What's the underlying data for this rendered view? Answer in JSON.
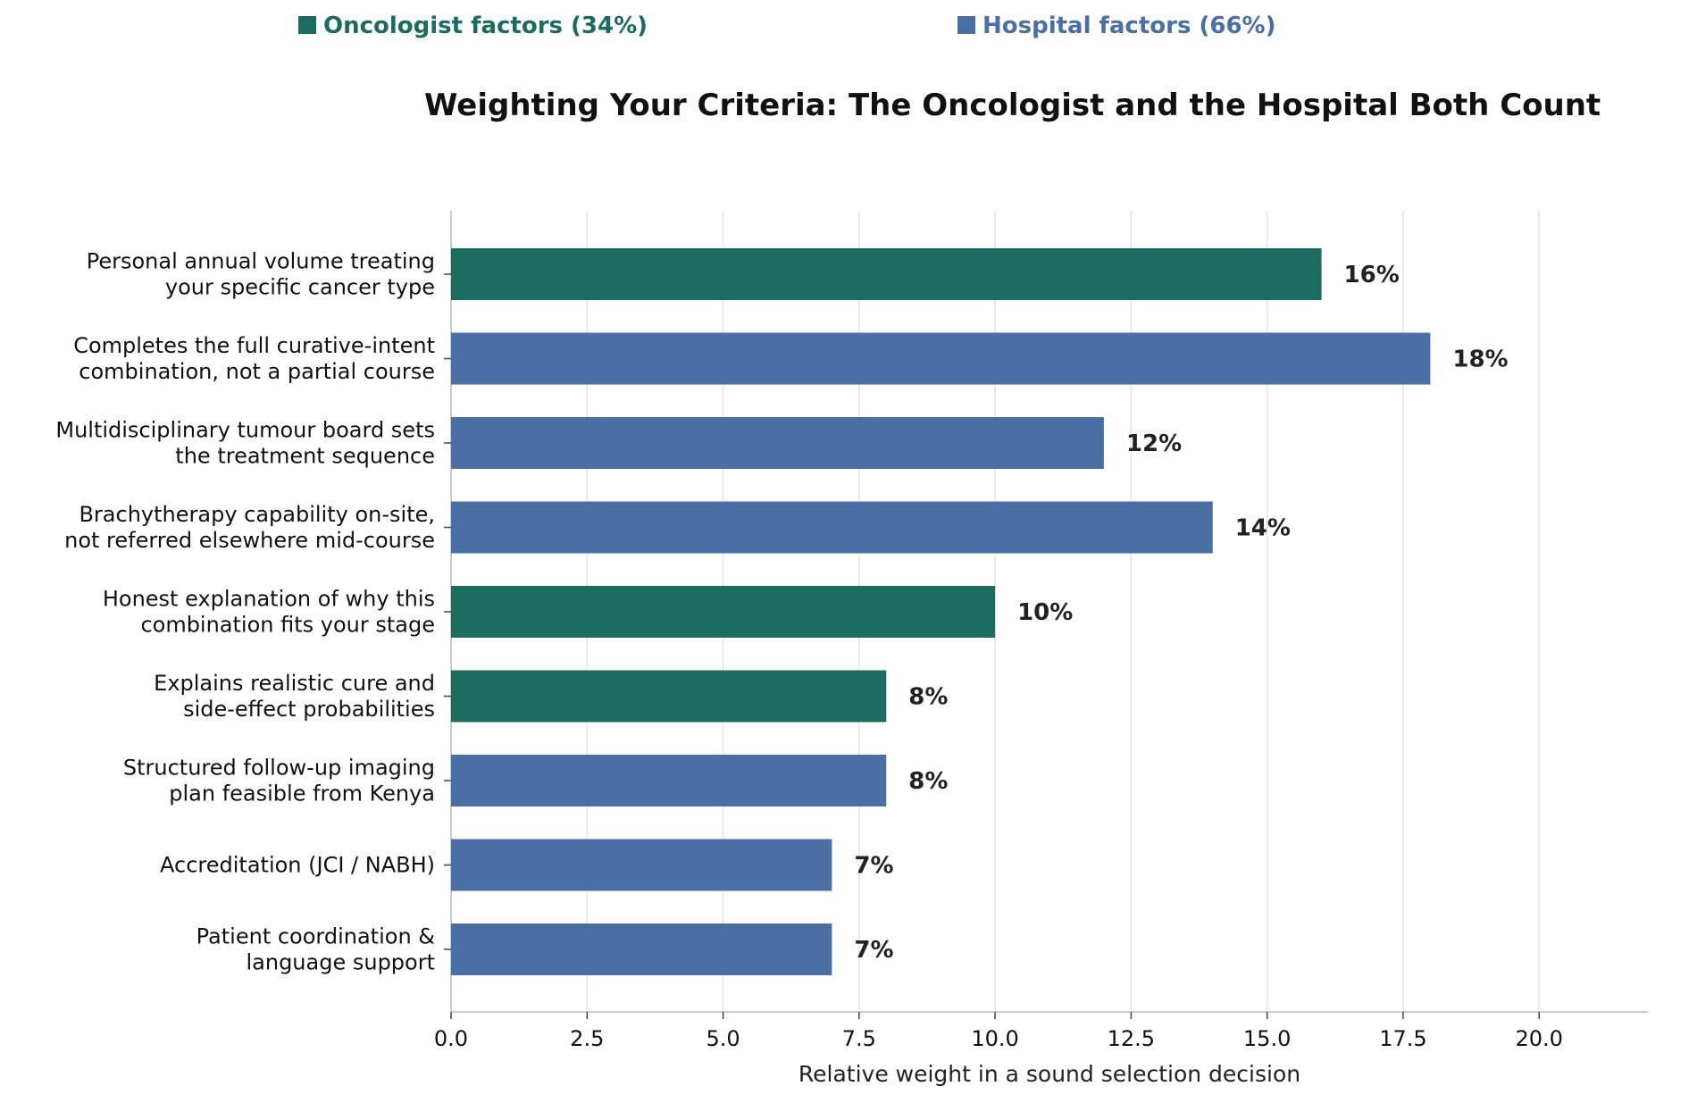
{
  "legend": {
    "oncologist": {
      "label": "Oncologist factors (34%)",
      "color": "#1b6b61"
    },
    "hospital": {
      "label": "Hospital factors (66%)",
      "color": "#4a6fa5"
    }
  },
  "chart_data": {
    "type": "bar",
    "orientation": "horizontal",
    "title": "Weighting Your Criteria: The Oncologist and the Hospital Both Count",
    "xlabel": "Relative weight in a sound selection decision",
    "ylabel": "",
    "xlim": [
      0,
      22
    ],
    "xticks": [
      0.0,
      2.5,
      5.0,
      7.5,
      10.0,
      12.5,
      15.0,
      17.5,
      20.0
    ],
    "xtick_labels": [
      "0.0",
      "2.5",
      "5.0",
      "7.5",
      "10.0",
      "12.5",
      "15.0",
      "17.5",
      "20.0"
    ],
    "grid": "vertical",
    "legend_placement": "top",
    "categories": [
      [
        "Personal annual volume treating",
        "your specific cancer type"
      ],
      [
        "Completes the full curative-intent",
        "combination, not a partial course"
      ],
      [
        "Multidisciplinary tumour board sets",
        "the treatment sequence"
      ],
      [
        "Brachytherapy capability on-site,",
        "not referred elsewhere mid-course"
      ],
      [
        "Honest explanation of why this",
        "combination fits your stage"
      ],
      [
        "Explains realistic cure and",
        "side-effect probabilities"
      ],
      [
        "Structured follow-up imaging",
        "plan feasible from Kenya"
      ],
      [
        "Accreditation (JCI / NABH)"
      ],
      [
        "Patient coordination &",
        "language support"
      ]
    ],
    "values": [
      16,
      18,
      12,
      14,
      10,
      8,
      8,
      7,
      7
    ],
    "value_labels": [
      "16%",
      "18%",
      "12%",
      "14%",
      "10%",
      "8%",
      "8%",
      "7%",
      "7%"
    ],
    "groups": [
      "oncologist",
      "hospital",
      "hospital",
      "hospital",
      "oncologist",
      "oncologist",
      "hospital",
      "hospital",
      "hospital"
    ]
  }
}
